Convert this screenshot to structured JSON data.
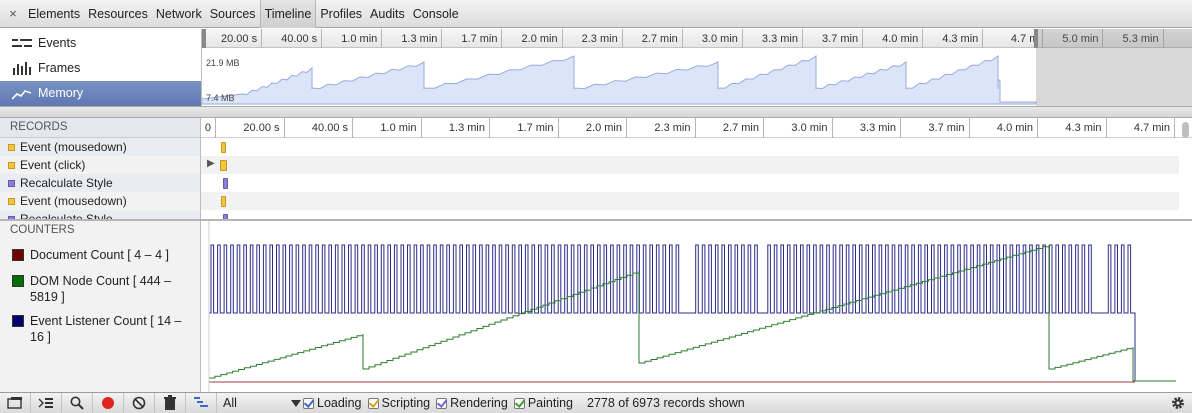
{
  "tabs": [
    {
      "label": "Elements"
    },
    {
      "label": "Resources"
    },
    {
      "label": "Network"
    },
    {
      "label": "Sources"
    },
    {
      "label": "Timeline",
      "active": true
    },
    {
      "label": "Profiles"
    },
    {
      "label": "Audits"
    },
    {
      "label": "Console"
    }
  ],
  "close_glyph": "×",
  "overview": {
    "items": [
      {
        "label": "Events",
        "icon": "events-icon"
      },
      {
        "label": "Frames",
        "icon": "frames-icon"
      },
      {
        "label": "Memory",
        "icon": "memory-icon",
        "selected": true
      }
    ],
    "ruler": [
      "20.00 s",
      "40.00 s",
      "1.0 min",
      "1.3 min",
      "1.7 min",
      "2.0 min",
      "2.3 min",
      "2.7 min",
      "3.0 min",
      "3.3 min",
      "3.7 min",
      "4.0 min",
      "4.3 min",
      "4.7 m",
      "5.0 min",
      "5.3 min"
    ],
    "memory_max": "21.9 MB",
    "memory_min": "7.4 MB"
  },
  "records": {
    "header": "RECORDS",
    "ruler": [
      "0",
      "20.00 s",
      "40.00 s",
      "1.0 min",
      "1.3 min",
      "1.7 min",
      "2.0 min",
      "2.3 min",
      "2.7 min",
      "3.0 min",
      "3.3 min",
      "3.7 min",
      "4.0 min",
      "4.3 min",
      "4.7 min"
    ],
    "rows": [
      {
        "label": "Event (mousedown)",
        "category": "scripting"
      },
      {
        "label": "Event (click)",
        "category": "scripting",
        "expandable": true
      },
      {
        "label": "Recalculate Style",
        "category": "rendering"
      },
      {
        "label": "Event (mousedown)",
        "category": "scripting"
      },
      {
        "label": "Recalculate Style",
        "category": "rendering"
      }
    ]
  },
  "counters": {
    "header": "COUNTERS",
    "items": [
      {
        "label": "Document Count [ 4 – 4 ]",
        "color": "#6e0000"
      },
      {
        "label": "DOM Node Count [ 444 – 5819 ]",
        "color": "#006e00"
      },
      {
        "label": "Event Listener Count [ 14 – 16 ]",
        "color": "#00006e"
      }
    ]
  },
  "colors": {
    "scripting": "#f3c341",
    "rendering": "#8e7ad9",
    "loading": "#5a8bd6",
    "painting": "#6fb85f",
    "memory_fill": "#dbe4f8",
    "memory_line": "#98abdc"
  },
  "statusbar": {
    "filter": "All",
    "checkboxes": [
      {
        "label": "Loading",
        "checked": true,
        "color": "#3b66c8"
      },
      {
        "label": "Scripting",
        "checked": true,
        "color": "#d6a21b"
      },
      {
        "label": "Rendering",
        "checked": true,
        "color": "#7a5fd0"
      },
      {
        "label": "Painting",
        "checked": true,
        "color": "#3e9a2e"
      }
    ],
    "records_shown": "2778 of 6973 records shown"
  }
}
